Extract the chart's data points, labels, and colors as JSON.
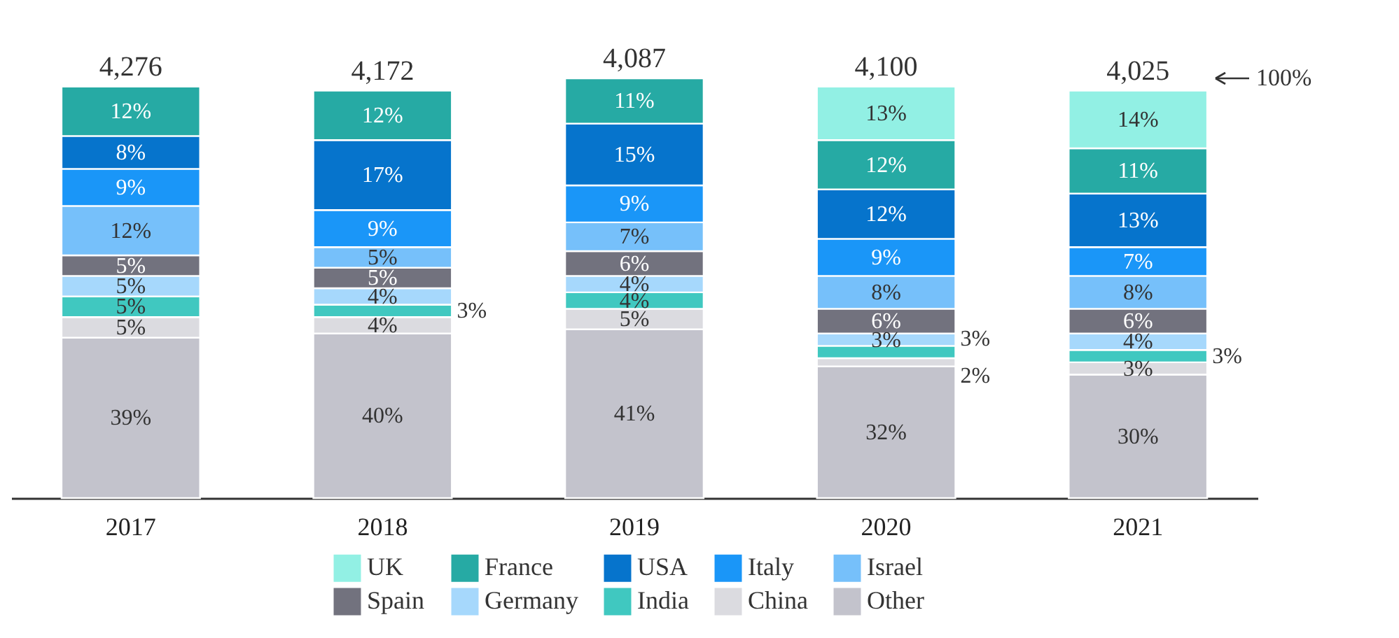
{
  "chart_data": {
    "type": "bar",
    "stacked": true,
    "categories": [
      "2017",
      "2018",
      "2019",
      "2020",
      "2021"
    ],
    "series": [
      {
        "name": "Other",
        "color": "#c3c3cc",
        "values": [
          39,
          40,
          41,
          32,
          30
        ],
        "value_labels": [
          "39%",
          "40%",
          "41%",
          "32%",
          "30%"
        ]
      },
      {
        "name": "China",
        "color": "#dbdbe0",
        "values": [
          5,
          4,
          5,
          2,
          3
        ],
        "value_labels": [
          "5%",
          "4%",
          "5%",
          "2%",
          "3%"
        ]
      },
      {
        "name": "India",
        "color": "#40c8c0",
        "values": [
          5,
          3,
          4,
          3,
          3
        ],
        "value_labels": [
          "5%",
          "3%",
          "4%",
          "3%",
          "3%"
        ]
      },
      {
        "name": "Germany",
        "color": "#a6d8fc",
        "values": [
          5,
          4,
          4,
          3,
          4
        ],
        "value_labels": [
          "5%",
          "4%",
          "4%",
          "3%",
          "4%"
        ]
      },
      {
        "name": "Spain",
        "color": "#72727e",
        "values": [
          5,
          5,
          6,
          6,
          6
        ],
        "value_labels": [
          "5%",
          "5%",
          "6%",
          "6%",
          "6%"
        ]
      },
      {
        "name": "Israel",
        "color": "#76c0fa",
        "values": [
          12,
          5,
          7,
          8,
          8
        ],
        "value_labels": [
          "12%",
          "5%",
          "7%",
          "8%",
          "8%"
        ]
      },
      {
        "name": "Italy",
        "color": "#1a96f8",
        "values": [
          9,
          9,
          9,
          9,
          7
        ],
        "value_labels": [
          "9%",
          "9%",
          "9%",
          "9%",
          "7%"
        ]
      },
      {
        "name": "USA",
        "color": "#0674cc",
        "values": [
          8,
          17,
          15,
          12,
          13
        ],
        "value_labels": [
          "8%",
          "17%",
          "15%",
          "12%",
          "13%"
        ]
      },
      {
        "name": "France",
        "color": "#26aaa4",
        "values": [
          12,
          12,
          11,
          12,
          11
        ],
        "value_labels": [
          "12%",
          "12%",
          "11%",
          "12%",
          "11%"
        ]
      },
      {
        "name": "UK",
        "color": "#92f0e4",
        "values": [
          null,
          null,
          null,
          13,
          14
        ],
        "value_labels": [
          null,
          null,
          null,
          "13%",
          "14%"
        ]
      }
    ],
    "annotations": [
      "4,276",
      "4,172",
      "4,087",
      "4,100",
      "4,025",
      "100%"
    ],
    "legend": "bottom",
    "grid": false
  }
}
